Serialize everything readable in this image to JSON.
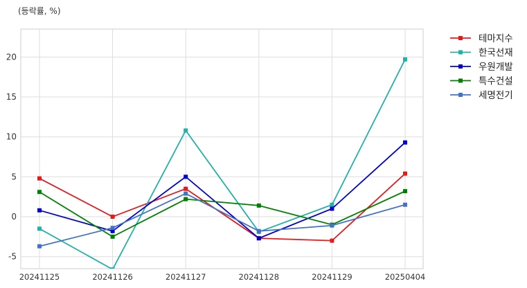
{
  "chart_data": {
    "type": "line",
    "title": "",
    "unit_note": "(등락률, %)",
    "xlabel": "",
    "ylabel": "",
    "categories": [
      "20241125",
      "20241126",
      "20241127",
      "20241128",
      "20241129",
      "20250404"
    ],
    "yticks": [
      -5,
      0,
      5,
      10,
      15,
      20
    ],
    "ylim": [
      -6.5,
      23.5
    ],
    "grid": true,
    "legend_position": "top-right-outside",
    "series": [
      {
        "name": "테마지수",
        "color": "#e31a1c",
        "values": [
          4.8,
          0.0,
          3.5,
          -2.7,
          -3.0,
          5.4
        ]
      },
      {
        "name": "한국선재",
        "color": "#20b2aa",
        "values": [
          -1.5,
          -6.6,
          10.8,
          -1.9,
          1.5,
          19.7
        ]
      },
      {
        "name": "우원개발",
        "color": "#0000cd",
        "values": [
          0.8,
          -1.8,
          5.0,
          -2.7,
          1.0,
          9.3
        ]
      },
      {
        "name": "특수건설",
        "color": "#008000",
        "values": [
          3.1,
          -2.5,
          2.2,
          1.4,
          -1.0,
          3.2
        ]
      },
      {
        "name": "세명전기",
        "color": "#4472c4",
        "values": [
          -3.7,
          -1.4,
          2.9,
          -1.8,
          -1.1,
          1.5
        ]
      }
    ]
  }
}
